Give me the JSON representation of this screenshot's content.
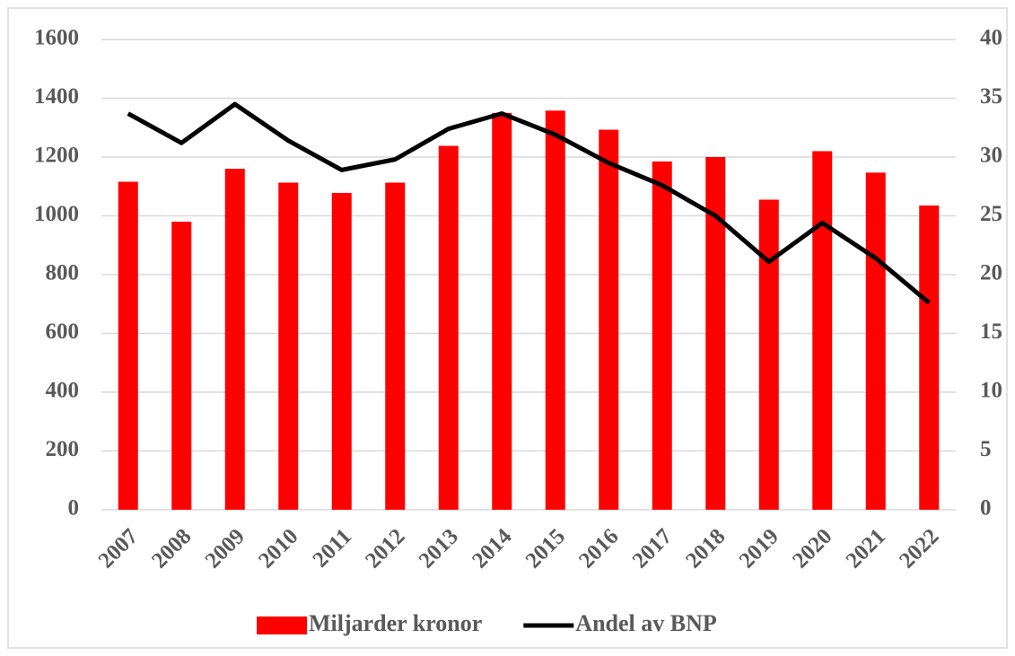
{
  "chart_data": {
    "type": "bar",
    "categories": [
      "2007",
      "2008",
      "2009",
      "2010",
      "2011",
      "2012",
      "2013",
      "2014",
      "2015",
      "2016",
      "2017",
      "2018",
      "2019",
      "2020",
      "2021",
      "2022"
    ],
    "series": [
      {
        "name": "Miljarder kronor",
        "color": "#ff0000",
        "type": "bar",
        "values": [
          1116,
          980,
          1160,
          1113,
          1078,
          1113,
          1238,
          1350,
          1358,
          1293,
          1185,
          1200,
          1055,
          1220,
          1147,
          1035
        ]
      },
      {
        "name": "Andel av BNP",
        "color": "#000000",
        "type": "line",
        "axis": "y2",
        "values": [
          33.7,
          31.2,
          34.5,
          31.4,
          28.9,
          29.8,
          32.4,
          33.7,
          31.9,
          29.5,
          27.6,
          25.0,
          21.1,
          24.4,
          21.4,
          17.6
        ]
      }
    ],
    "ylim": [
      0,
      1600
    ],
    "yticks": [
      0,
      200,
      400,
      600,
      800,
      1000,
      1200,
      1400,
      1600
    ],
    "y2lim": [
      0,
      40
    ],
    "y2ticks": [
      0,
      5,
      10,
      15,
      20,
      25,
      30,
      35,
      40
    ],
    "grid": true,
    "legend": "bottom"
  }
}
